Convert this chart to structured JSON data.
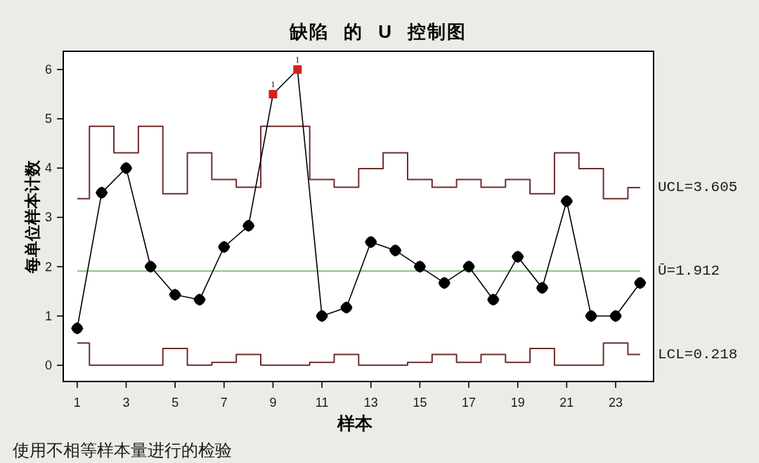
{
  "chart_data": {
    "type": "line",
    "title": "缺陷 的 U 控制图",
    "xlabel": "样本",
    "ylabel": "每单位样本计数",
    "x": [
      1,
      2,
      3,
      4,
      5,
      6,
      7,
      8,
      9,
      10,
      11,
      12,
      13,
      14,
      15,
      16,
      17,
      18,
      19,
      20,
      21,
      22,
      23,
      24
    ],
    "xlim": [
      0.43,
      24.55
    ],
    "xticks": [
      1,
      3,
      5,
      7,
      9,
      11,
      13,
      15,
      17,
      19,
      21,
      23
    ],
    "ylim": [
      -0.33,
      6.37
    ],
    "yticks": [
      0,
      1,
      2,
      3,
      4,
      5,
      6
    ],
    "series": [
      {
        "type": "step",
        "name": "UCL=3.605",
        "color": "#6e2c2c",
        "values": [
          3.38,
          4.85,
          4.31,
          4.85,
          3.48,
          4.31,
          3.77,
          3.61,
          4.85,
          4.85,
          3.77,
          3.61,
          3.99,
          4.31,
          3.77,
          3.61,
          3.77,
          3.61,
          3.77,
          3.48,
          4.31,
          3.99,
          3.38,
          3.605
        ]
      },
      {
        "type": "step",
        "name": "LCL=0.218",
        "color": "#6e2c2c",
        "values": [
          0.45,
          0,
          0,
          0,
          0.34,
          0,
          0.06,
          0.22,
          0,
          0,
          0.06,
          0.22,
          0,
          0,
          0.06,
          0.22,
          0.06,
          0.22,
          0.06,
          0.34,
          0,
          0,
          0.45,
          0.218
        ]
      },
      {
        "color": "#000000",
        "marker": "none",
        "values": [
          0.75,
          3.5,
          4,
          2,
          1.43,
          1.33,
          2.4,
          2.83,
          5.5,
          6,
          1,
          1.17,
          2.5,
          2.33,
          2,
          1.67,
          2,
          1.33,
          2.2,
          1.57,
          3.33,
          1,
          1,
          1.67
        ]
      },
      {
        "type": "scatter",
        "color": "#000000",
        "marker": "diamond",
        "x": [
          1,
          2,
          3,
          4,
          5,
          6,
          7,
          8,
          11,
          12,
          13,
          14,
          15,
          16,
          17,
          18,
          19,
          20,
          21,
          22,
          23,
          24
        ],
        "values": [
          0.75,
          3.5,
          4,
          2,
          1.43,
          1.33,
          2.4,
          2.83,
          1,
          1.17,
          2.5,
          2.33,
          2,
          1.67,
          2,
          1.33,
          2.2,
          1.57,
          3.33,
          1,
          1,
          1.67
        ]
      },
      {
        "type": "scatter",
        "color": "#d42020",
        "marker": "square",
        "x": [
          9,
          10
        ],
        "values": [
          5.5,
          6
        ]
      }
    ],
    "ref_lines": [
      {
        "axis": "y",
        "value": 1.912,
        "label": "Ū=1.912",
        "color": "#66b266"
      }
    ],
    "annotations": [
      {
        "text": "1",
        "x": 9,
        "y": 5.5
      },
      {
        "text": "1",
        "x": 10,
        "y": 6
      },
      "使用不相等样本量进行的检验"
    ]
  }
}
